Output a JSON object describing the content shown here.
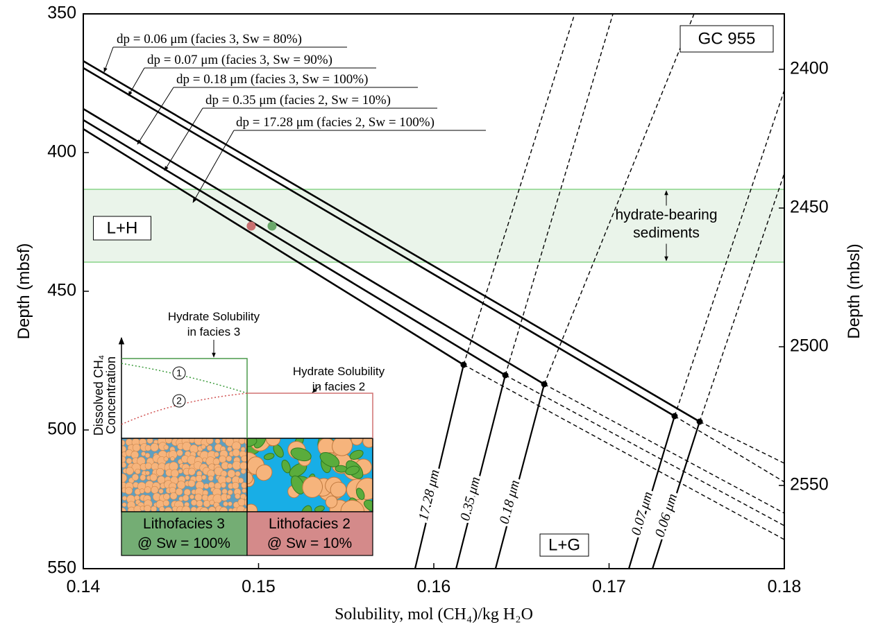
{
  "chart_data": {
    "type": "line",
    "x_label": "Solubility, mol (CH₄)/kg H₂O",
    "y_label": "Depth (mbsf)",
    "y2_label": "Depth (mbsl)",
    "xlim": [
      0.14,
      0.18
    ],
    "xticks": [
      0.14,
      0.15,
      0.16,
      0.17,
      0.18
    ],
    "ylim": [
      350,
      550
    ],
    "yticks": [
      350,
      400,
      450,
      500,
      550
    ],
    "y_reversed": true,
    "y2lim": [
      2380,
      2580
    ],
    "y2ticks": [
      2400,
      2450,
      2500,
      2550
    ],
    "site_label": "GC 955",
    "region_labels": [
      "L+H",
      "L+G"
    ],
    "band": {
      "label": [
        "hydrate-bearing",
        "sediments"
      ],
      "y": [
        413.25,
        439.5
      ],
      "color": "#eaf4ea",
      "edge_color": "#88d488"
    },
    "points": [
      {
        "x": 0.14958,
        "y": 426.5,
        "color": "#c97070"
      },
      {
        "x": 0.15077,
        "y": 426.5,
        "color": "#6aa86a"
      }
    ],
    "series": [
      {
        "name": "0.06 μm",
        "annotation": "dp = 0.06 μm (facies 3, Sw = 80%)",
        "color": "#000000",
        "hydrate_x": [
          0.14,
          0.17517
        ],
        "hydrate_values": [
          367,
          497
        ],
        "hydrate_dashed_x": [
          0.17517,
          0.18
        ],
        "hydrate_dashed_values": [
          497,
          512
        ],
        "gas_x": [
          0.17248,
          0.17517
        ],
        "gas_values": [
          550,
          497
        ],
        "gas_dashed_x": [
          0.17517,
          0.18
        ],
        "gas_dashed_values": [
          497,
          407.5
        ]
      },
      {
        "name": "0.07 μm",
        "annotation": "dp = 0.07 μm (facies 3, Sw = 90%)",
        "color": "#000000",
        "hydrate_x": [
          0.14,
          0.17374
        ],
        "hydrate_values": [
          369.5,
          495
        ],
        "hydrate_dashed_x": [
          0.17374,
          0.18
        ],
        "hydrate_dashed_values": [
          495,
          518.75
        ],
        "gas_x": [
          0.17113,
          0.17374
        ],
        "gas_values": [
          550,
          495
        ],
        "gas_dashed_x": [
          0.17374,
          0.18
        ],
        "gas_dashed_values": [
          495,
          377.5
        ]
      },
      {
        "name": "0.18 μm",
        "annotation": "dp = 0.18 μm (facies 3, Sw = 100%)",
        "color": "#000000",
        "hydrate_x": [
          0.14,
          0.1663
        ],
        "hydrate_values": [
          384.25,
          483.5
        ],
        "hydrate_dashed_x": [
          0.1663,
          0.18
        ],
        "hydrate_dashed_values": [
          483.5,
          530
        ],
        "gas_x": [
          0.16352,
          0.1663
        ],
        "gas_values": [
          550,
          483.5
        ],
        "gas_dashed_x": [
          0.1663,
          0.17485
        ],
        "gas_dashed_values": [
          483.5,
          350
        ]
      },
      {
        "name": "0.35 μm",
        "annotation": "dp = 0.35 μm (facies 2, Sw = 10%)",
        "color": "#000000",
        "hydrate_x": [
          0.14,
          0.16408
        ],
        "hydrate_values": [
          388.25,
          480.25
        ],
        "hydrate_dashed_x": [
          0.16408,
          0.18
        ],
        "hydrate_dashed_values": [
          480.25,
          534.5
        ],
        "gas_x": [
          0.16127,
          0.16408
        ],
        "gas_values": [
          550,
          480.25
        ],
        "gas_dashed_x": [
          0.16408,
          0.17022
        ],
        "gas_dashed_values": [
          480.25,
          350
        ]
      },
      {
        "name": "17.28 μm",
        "annotation": "dp = 17.28 μm (facies 2, Sw = 100%)",
        "color": "#000000",
        "hydrate_x": [
          0.14,
          0.1617
        ],
        "hydrate_values": [
          391.5,
          476.5
        ],
        "hydrate_dashed_x": [
          0.1617,
          0.18
        ],
        "hydrate_dashed_values": [
          476.5,
          539.5
        ],
        "gas_x": [
          0.15893,
          0.1617
        ],
        "gas_values": [
          550,
          476.5
        ],
        "gas_dashed_x": [
          0.1617,
          0.16804
        ],
        "gas_dashed_values": [
          476.5,
          350
        ]
      }
    ],
    "inset": {
      "y_label": [
        "Dissolved CH₄",
        "Concentration"
      ],
      "facies3_note": [
        "Hydrate Solubility",
        "in facies 3"
      ],
      "facies2_note": [
        "Hydrate Solubility",
        "in facies 2"
      ],
      "curve_markers": [
        "1",
        "2"
      ],
      "facies3_label": [
        "Lithofacies 3",
        "@ Sw = 100%"
      ],
      "facies2_label": [
        "Lithofacies 2",
        "@ Sw = 10%"
      ],
      "facies3_color": "#74ad74",
      "facies2_color": "#d48a8a"
    }
  }
}
